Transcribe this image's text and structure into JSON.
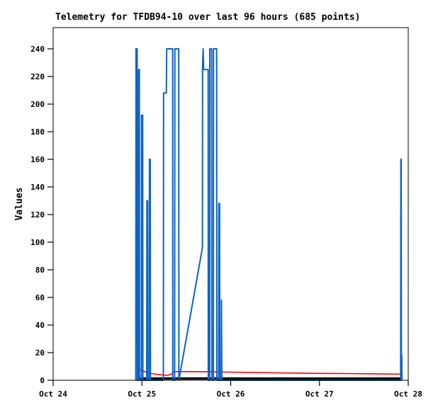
{
  "window": {
    "background_color": "#ffffff"
  },
  "chart_data": {
    "type": "line",
    "title": "Telemetry for TFDB94-10 over last 96 hours (685 points)",
    "xlabel": "",
    "ylabel": "Values",
    "x_unit": "hours since Oct 24 00:00",
    "xlim": [
      0,
      96
    ],
    "ylim": [
      0,
      255
    ],
    "grid": false,
    "legend": "none",
    "frame_color": "#000000",
    "y_ticks": [
      0,
      20,
      40,
      60,
      80,
      100,
      120,
      140,
      160,
      180,
      200,
      220,
      240
    ],
    "x_ticks": [
      {
        "hour": 0,
        "label": "Oct 24"
      },
      {
        "hour": 24,
        "label": "Oct 25"
      },
      {
        "hour": 48,
        "label": "Oct 26"
      },
      {
        "hour": 72,
        "label": "Oct 27"
      },
      {
        "hour": 96,
        "label": "Oct 28"
      }
    ],
    "series": [
      {
        "name": "red-baseline",
        "color": "#ff0000",
        "stroke_width": 1.6,
        "points": [
          [
            23.1,
            8.2
          ],
          [
            24.2,
            7.0
          ],
          [
            25.5,
            5.4
          ],
          [
            27.0,
            4.6
          ],
          [
            29.0,
            4.0
          ],
          [
            30.8,
            3.6
          ],
          [
            31.8,
            4.2
          ],
          [
            32.6,
            6.2
          ],
          [
            36,
            6.3
          ],
          [
            42,
            6.1
          ],
          [
            48,
            5.9
          ],
          [
            54,
            5.7
          ],
          [
            60,
            5.4
          ],
          [
            66,
            5.2
          ],
          [
            72,
            5.0
          ],
          [
            78,
            4.9
          ],
          [
            84,
            4.7
          ],
          [
            90,
            4.5
          ],
          [
            94.0,
            4.4
          ]
        ]
      },
      {
        "name": "black-baseline",
        "color": "#000000",
        "stroke_width": 3.2,
        "points": [
          [
            23.15,
            1.3
          ],
          [
            94.15,
            1.3
          ]
        ]
      },
      {
        "name": "blue-telemetry",
        "color": "#0d63c8",
        "stroke_width": 2,
        "points": [
          [
            22.35,
            0
          ],
          [
            22.4,
            240
          ],
          [
            22.7,
            240
          ],
          [
            22.75,
            0
          ],
          [
            23.05,
            0
          ],
          [
            23.1,
            225
          ],
          [
            23.3,
            225
          ],
          [
            23.35,
            0
          ],
          [
            23.85,
            0
          ],
          [
            23.9,
            192
          ],
          [
            24.2,
            192
          ],
          [
            24.25,
            0
          ],
          [
            25.3,
            0
          ],
          [
            25.35,
            130
          ],
          [
            25.55,
            130
          ],
          [
            25.6,
            0
          ],
          [
            26.0,
            0
          ],
          [
            26.05,
            160
          ],
          [
            26.25,
            160
          ],
          [
            26.3,
            0
          ],
          [
            29.8,
            0
          ],
          [
            29.85,
            208
          ],
          [
            30.6,
            208
          ],
          [
            30.7,
            240
          ],
          [
            32.3,
            240
          ],
          [
            32.35,
            0
          ],
          [
            32.85,
            0
          ],
          [
            32.9,
            240
          ],
          [
            33.95,
            240
          ],
          [
            34.0,
            0
          ],
          [
            40.35,
            96
          ],
          [
            40.4,
            225
          ],
          [
            40.55,
            240
          ],
          [
            40.7,
            225
          ],
          [
            41.9,
            225
          ],
          [
            41.95,
            0
          ],
          [
            42.3,
            0
          ],
          [
            42.35,
            240
          ],
          [
            42.85,
            240
          ],
          [
            42.9,
            0
          ],
          [
            43.3,
            0
          ],
          [
            43.35,
            240
          ],
          [
            44.2,
            240
          ],
          [
            44.25,
            0
          ],
          [
            44.75,
            0
          ],
          [
            44.8,
            128
          ],
          [
            45.0,
            128
          ],
          [
            45.05,
            0
          ],
          [
            45.45,
            0
          ],
          [
            45.5,
            58
          ],
          [
            45.6,
            0
          ],
          [
            93.95,
            0
          ],
          [
            94.0,
            160
          ],
          [
            94.1,
            160
          ],
          [
            94.15,
            18
          ],
          [
            94.25,
            18
          ],
          [
            94.3,
            0
          ]
        ]
      }
    ]
  }
}
